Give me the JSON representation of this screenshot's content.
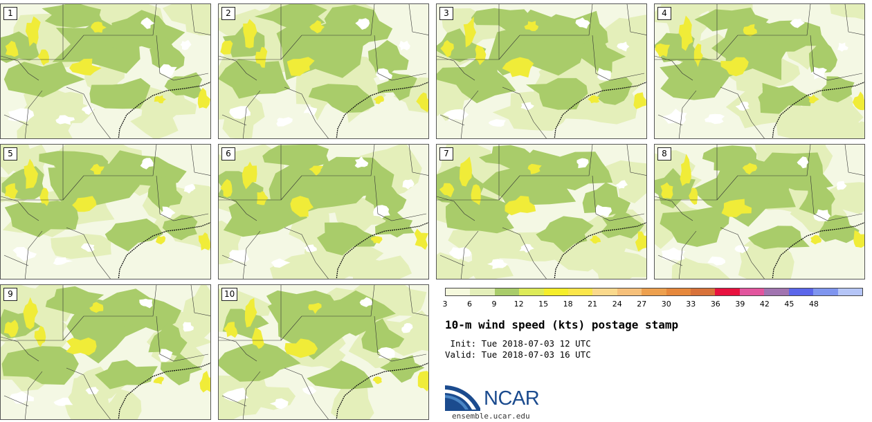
{
  "panels": [
    {
      "label": "1"
    },
    {
      "label": "2"
    },
    {
      "label": "3"
    },
    {
      "label": "4"
    },
    {
      "label": "5"
    },
    {
      "label": "6"
    },
    {
      "label": "7"
    },
    {
      "label": "8"
    },
    {
      "label": "9"
    },
    {
      "label": "10"
    }
  ],
  "colorbar": {
    "ticks": [
      "3",
      "6",
      "9",
      "12",
      "15",
      "18",
      "21",
      "24",
      "27",
      "30",
      "33",
      "36",
      "39",
      "42",
      "45",
      "48"
    ],
    "colors": [
      "#f5f9dd",
      "#e4efba",
      "#a9cc6a",
      "#ddeb58",
      "#f5ee2a",
      "#fbe64a",
      "#fad98c",
      "#f6c07a",
      "#eda04e",
      "#e6883c",
      "#d8723a",
      "#e8123f",
      "#e2559e",
      "#a174b0",
      "#5b66ea",
      "#7f95ef",
      "#b5c5f7"
    ]
  },
  "title": "10-m wind speed (kts) postage stamp",
  "init": " Init: Tue 2018-07-03 12 UTC",
  "valid": "Valid: Tue 2018-07-03 16 UTC",
  "logo": {
    "text": "NCAR",
    "site": "ensemble.ucar.edu"
  },
  "colors": {
    "light": "#f4f8e4",
    "pale": "#e4efba",
    "green": "#a9cc6a",
    "yellow": "#f0ec38",
    "white": "#ffffff",
    "border": "#555555"
  }
}
